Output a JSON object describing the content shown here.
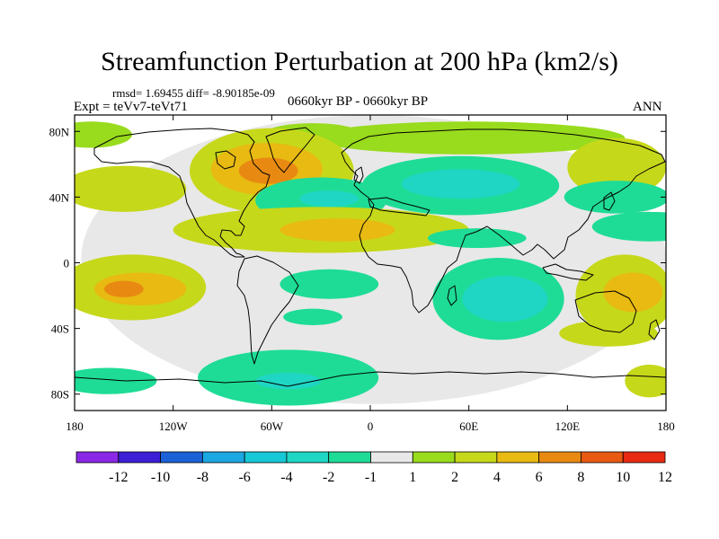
{
  "chart_data": {
    "type": "heatmap",
    "title": "Streamfunction Perturbation at 200 hPa (km2/s)",
    "stats": "rmsd= 1.69455 diff= -8.90185e-09",
    "experiment": "Expt = teVv7-teVt71",
    "center_label": "0660kyr BP - 0660kyr BP",
    "season": "ANN",
    "projection": "cylindrical-equidistant",
    "xlim": [
      -180,
      180
    ],
    "ylim": [
      -90,
      90
    ],
    "x_ticks": [
      {
        "value": -180,
        "label": "180"
      },
      {
        "value": -120,
        "label": "120W"
      },
      {
        "value": -60,
        "label": "60W"
      },
      {
        "value": 0,
        "label": "0"
      },
      {
        "value": 60,
        "label": "60E"
      },
      {
        "value": 120,
        "label": "120E"
      },
      {
        "value": 180,
        "label": "180"
      }
    ],
    "y_ticks": [
      {
        "value": 80,
        "label": "80N"
      },
      {
        "value": 40,
        "label": "40N"
      },
      {
        "value": 0,
        "label": "0"
      },
      {
        "value": -40,
        "label": "40S"
      },
      {
        "value": -80,
        "label": "80S"
      }
    ],
    "colorbar": {
      "levels": [
        -12,
        -10,
        -8,
        -6,
        -4,
        -2,
        -1,
        1,
        2,
        4,
        6,
        8,
        10,
        12
      ],
      "colors": [
        "#8a28e6",
        "#3c1fd6",
        "#1d61d6",
        "#1aa7e2",
        "#17c8d6",
        "#1fd6c4",
        "#1edc96",
        "#e8e8e8",
        "#99db1d",
        "#c6d81a",
        "#e8ba12",
        "#e88a12",
        "#e85a12",
        "#e82a12"
      ]
    },
    "regions": [
      {
        "lon": 2,
        "lat": 2,
        "rx": 178,
        "ry": 88,
        "value": 0
      },
      {
        "lon": 60,
        "lat": 76,
        "rx": 95,
        "ry": 10,
        "value": 1.5
      },
      {
        "lon": -170,
        "lat": 78,
        "rx": 25,
        "ry": 8,
        "value": 1.5
      },
      {
        "lon": -35,
        "lat": 78,
        "rx": 30,
        "ry": 7,
        "value": 1.5
      },
      {
        "lon": -60,
        "lat": 56,
        "rx": 50,
        "ry": 26,
        "value": 2
      },
      {
        "lon": -63,
        "lat": 57,
        "rx": 34,
        "ry": 16,
        "value": 4
      },
      {
        "lon": -62,
        "lat": 56,
        "rx": 18,
        "ry": 8,
        "value": 6
      },
      {
        "lon": 150,
        "lat": 58,
        "rx": 30,
        "ry": 18,
        "value": 2
      },
      {
        "lon": -150,
        "lat": 45,
        "rx": 38,
        "ry": 14,
        "value": 2
      },
      {
        "lon": 55,
        "lat": 47,
        "rx": 60,
        "ry": 18,
        "value": -1.5
      },
      {
        "lon": 55,
        "lat": 48,
        "rx": 36,
        "ry": 9,
        "value": -3
      },
      {
        "lon": 150,
        "lat": 40,
        "rx": 32,
        "ry": 10,
        "value": -1.5
      },
      {
        "lon": -30,
        "lat": 38,
        "rx": 40,
        "ry": 14,
        "value": -1.5
      },
      {
        "lon": -25,
        "lat": 39,
        "rx": 18,
        "ry": 5,
        "value": -3
      },
      {
        "lon": -30,
        "lat": 20,
        "rx": 90,
        "ry": 14,
        "value": 2
      },
      {
        "lon": -20,
        "lat": 20,
        "rx": 35,
        "ry": 7,
        "value": 4
      },
      {
        "lon": 170,
        "lat": 22,
        "rx": 35,
        "ry": 9,
        "value": -1.5
      },
      {
        "lon": 65,
        "lat": 15,
        "rx": 30,
        "ry": 6,
        "value": -1.5
      },
      {
        "lon": -145,
        "lat": -15,
        "rx": 45,
        "ry": 20,
        "value": 2
      },
      {
        "lon": -140,
        "lat": -16,
        "rx": 28,
        "ry": 10,
        "value": 4
      },
      {
        "lon": -150,
        "lat": -16,
        "rx": 12,
        "ry": 5,
        "value": 6
      },
      {
        "lon": -25,
        "lat": -13,
        "rx": 30,
        "ry": 9,
        "value": -1.5
      },
      {
        "lon": 78,
        "lat": -22,
        "rx": 40,
        "ry": 25,
        "value": -1.5
      },
      {
        "lon": 82,
        "lat": -22,
        "rx": 26,
        "ry": 14,
        "value": -3
      },
      {
        "lon": 85,
        "lat": -22,
        "rx": 12,
        "ry": 7,
        "value": -4
      },
      {
        "lon": 155,
        "lat": -20,
        "rx": 30,
        "ry": 25,
        "value": 2
      },
      {
        "lon": 160,
        "lat": -18,
        "rx": 18,
        "ry": 12,
        "value": 4
      },
      {
        "lon": 145,
        "lat": -43,
        "rx": 30,
        "ry": 8,
        "value": 2
      },
      {
        "lon": -35,
        "lat": -33,
        "rx": 18,
        "ry": 5,
        "value": -1.5
      },
      {
        "lon": -160,
        "lat": -72,
        "rx": 30,
        "ry": 8,
        "value": -1.5
      },
      {
        "lon": -50,
        "lat": -70,
        "rx": 55,
        "ry": 17,
        "value": -1.5
      },
      {
        "lon": -50,
        "lat": -72,
        "rx": 20,
        "ry": 5,
        "value": -3
      },
      {
        "lon": 170,
        "lat": -72,
        "rx": 15,
        "ry": 10,
        "value": 2
      }
    ]
  }
}
